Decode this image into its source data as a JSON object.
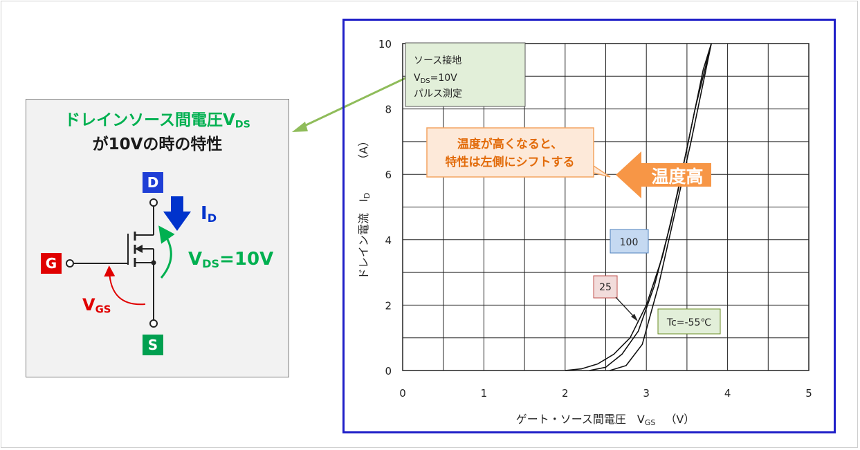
{
  "colors": {
    "green": "#00b050",
    "blue": "#0033cc",
    "red": "#e00000",
    "orange": "#f4a460",
    "note_bg": "#e2efd9"
  },
  "left_panel": {
    "title_line1_main": "ドレインソース間電圧V",
    "title_line1_sub": "DS",
    "title_line2": "が10Vの時の特性",
    "terminal_d": "D",
    "terminal_g": "G",
    "terminal_s": "S",
    "id_main": "I",
    "id_sub": "D",
    "vds_main": "V",
    "vds_sub": "DS",
    "vds_value": "=10V",
    "vgs_main": "V",
    "vgs_sub": "GS"
  },
  "chart_data": {
    "type": "line",
    "xlabel_main": "ゲート・ソース間電圧　V",
    "xlabel_sub": "GS",
    "xlabel_unit": "（V）",
    "ylabel": "ドレイン電流　I",
    "ylabel_sub": "D",
    "ylabel_unit": "（A）",
    "xlim": [
      0,
      5
    ],
    "ylim": [
      0,
      10
    ],
    "x_ticks": [
      "0",
      "1",
      "2",
      "3",
      "4",
      "5"
    ],
    "y_ticks": [
      "0",
      "2",
      "4",
      "6",
      "8",
      "10"
    ],
    "grid": true,
    "conditions": [
      "ソース接地",
      "V",
      "DS",
      "=10V",
      "パルス測定"
    ],
    "series": [
      {
        "name": "100",
        "x": [
          2.0,
          2.2,
          2.4,
          2.6,
          2.8,
          3.0,
          3.2,
          3.4,
          3.6,
          3.8
        ],
        "y": [
          0.0,
          0.05,
          0.2,
          0.5,
          1.0,
          2.0,
          3.5,
          5.6,
          8.0,
          10.0
        ]
      },
      {
        "name": "25",
        "x": [
          2.3,
          2.5,
          2.7,
          2.9,
          3.1,
          3.3,
          3.5,
          3.7,
          3.8
        ],
        "y": [
          0.0,
          0.1,
          0.5,
          1.2,
          2.6,
          4.5,
          6.8,
          9.2,
          10.0
        ]
      },
      {
        "name": "Tc=-55℃",
        "x": [
          2.55,
          2.75,
          2.95,
          3.15,
          3.35,
          3.55,
          3.7,
          3.8
        ],
        "y": [
          0.0,
          0.15,
          0.8,
          2.6,
          4.8,
          7.0,
          8.8,
          10.0
        ]
      }
    ],
    "annotation": [
      "温度が高くなると、",
      "特性は左側にシフトする"
    ],
    "arrow_label": "温度高"
  }
}
